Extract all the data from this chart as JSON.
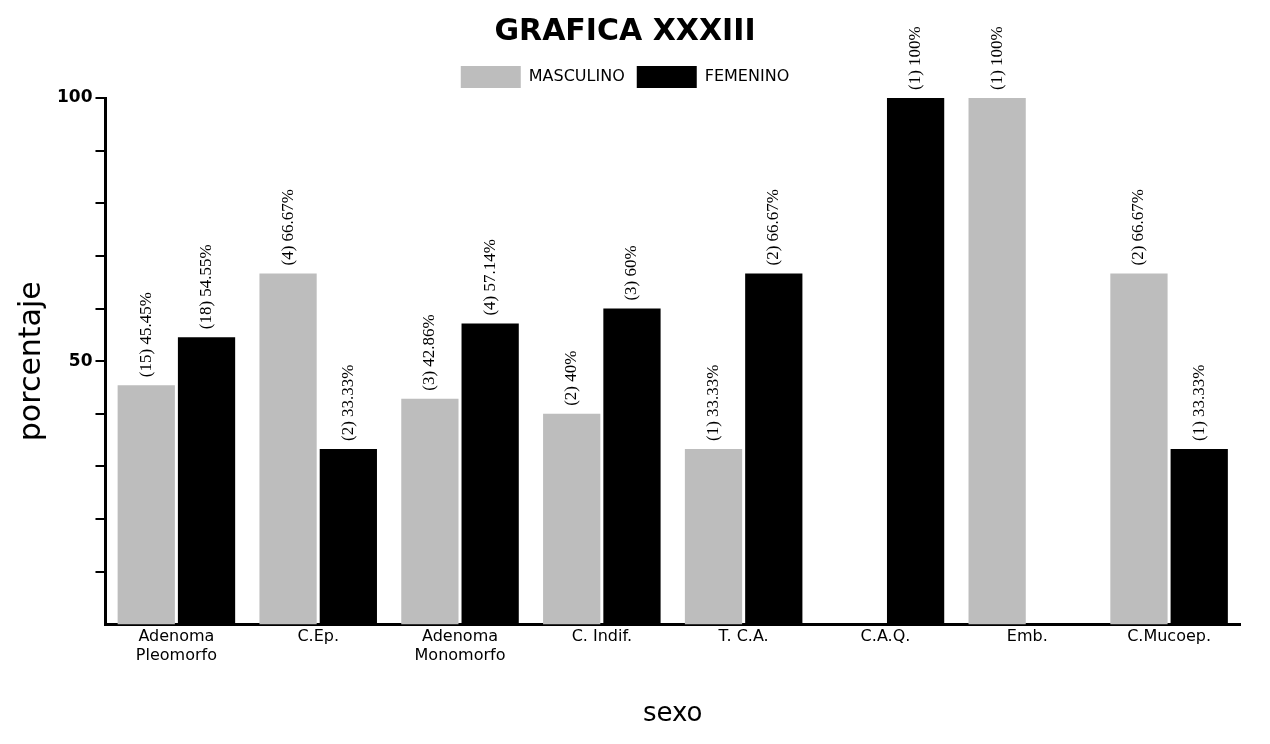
{
  "chart_data": {
    "type": "bar",
    "title": "GRAFICA XXXIII",
    "xlabel": "sexo",
    "ylabel": "porcentaje",
    "categories": [
      "Adenoma\nPleomorfo",
      "C.Ep.",
      "Adenoma\nMonomorfo",
      "C. Indif.",
      "T. C.A.",
      "C.A.Q.",
      "Emb.",
      "C.Mucoep."
    ],
    "series": [
      {
        "name": "MASCULINO",
        "color": "#bdbdbd",
        "values": [
          45.45,
          66.67,
          42.86,
          40,
          33.33,
          null,
          100,
          66.67
        ],
        "value_labels": [
          "(15) 45.45%",
          "(4) 66.67%",
          "(3) 42.86%",
          "(2) 40%",
          "(1) 33.33%",
          null,
          "(1) 100%",
          "(2) 66.67%"
        ]
      },
      {
        "name": "FEMENINO",
        "color": "#000000",
        "values": [
          54.55,
          33.33,
          57.14,
          60,
          66.67,
          100,
          null,
          33.33
        ],
        "value_labels": [
          "(18) 54.55%",
          "(2) 33.33%",
          "(4) 57.14%",
          "(3) 60%",
          "(2) 66.67%",
          "(1) 100%",
          null,
          "(1) 33.33%"
        ]
      }
    ],
    "ylim": [
      0,
      100
    ],
    "yticks": [
      {
        "value": 10,
        "label": null
      },
      {
        "value": 20,
        "label": null
      },
      {
        "value": 30,
        "label": null
      },
      {
        "value": 40,
        "label": null
      },
      50,
      {
        "value": 60,
        "label": null
      },
      {
        "value": 70,
        "label": null
      },
      {
        "value": 80,
        "label": null
      },
      {
        "value": 90,
        "label": null
      },
      100
    ],
    "grid": false,
    "legend": "top"
  }
}
